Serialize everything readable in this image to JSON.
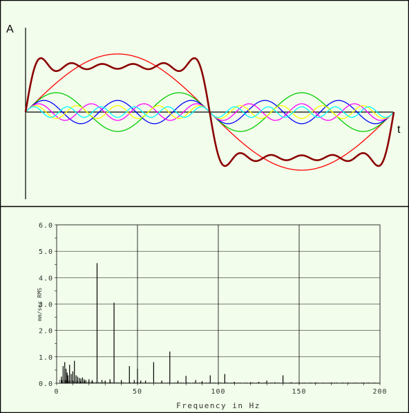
{
  "chart_data": [
    {
      "type": "line",
      "title": "",
      "ylabel": "A",
      "xlabel": "t",
      "x": "t from 0 to 2π",
      "series": [
        {
          "color": "#8b0000",
          "values": "square-wave partial sum of harmonics 1,3,5,7,9,11",
          "harmonics": [
            1,
            3,
            5,
            7,
            9,
            11
          ]
        },
        {
          "color": "#ff0000",
          "harmonic": 1,
          "amplitude": 1.0
        },
        {
          "color": "#00cc00",
          "harmonic": 3,
          "amplitude": 0.3333
        },
        {
          "color": "#0000ff",
          "harmonic": 5,
          "amplitude": 0.2
        },
        {
          "color": "#ff00ff",
          "harmonic": 7,
          "amplitude": 0.1429
        },
        {
          "color": "#ffff00",
          "harmonic": 9,
          "amplitude": 0.1111
        },
        {
          "color": "#00ffff",
          "harmonic": 11,
          "amplitude": 0.0909
        }
      ]
    },
    {
      "type": "bar",
      "title": "",
      "xlabel": "Frequency in Hz",
      "ylabel": "mm/sec RMS",
      "xlim": [
        0,
        200
      ],
      "ylim": [
        0,
        6.0
      ],
      "xticks": [
        "0",
        "50",
        "100",
        "150",
        "200"
      ],
      "yticks": [
        "0.0",
        "1.0",
        "2.0",
        "3.0",
        "4.0",
        "5.0",
        "6.0"
      ],
      "grid": true,
      "x": [
        3,
        4,
        5,
        5.8,
        6.5,
        7,
        8,
        9,
        10,
        11,
        12,
        13,
        14,
        15,
        16,
        17,
        18,
        20,
        22,
        25,
        28,
        30,
        33,
        35.5,
        40,
        45,
        48,
        50,
        52,
        55,
        60,
        65,
        70,
        75,
        80,
        86,
        90,
        95,
        100,
        104,
        110,
        120,
        125,
        130,
        135,
        140,
        145,
        150,
        160,
        170,
        180,
        190
      ],
      "values": [
        0.25,
        0.65,
        0.8,
        0.55,
        0.4,
        0.3,
        0.7,
        0.35,
        0.45,
        0.85,
        0.3,
        0.25,
        0.2,
        0.18,
        0.22,
        0.15,
        0.12,
        0.15,
        0.12,
        4.55,
        0.12,
        0.1,
        0.15,
        3.05,
        0.12,
        0.65,
        0.12,
        0.55,
        0.1,
        0.1,
        0.8,
        0.1,
        1.2,
        0.1,
        0.28,
        0.12,
        0.08,
        0.3,
        0.05,
        0.35,
        0.05,
        0.04,
        0.05,
        0.1,
        0.04,
        0.3,
        0.03,
        0.03,
        0.03,
        0.03,
        0.02,
        0.02
      ]
    }
  ],
  "top_chart": {
    "y_letter": "A",
    "x_letter": "t"
  },
  "bottom_chart": {
    "ylabel": "mm/sec RMS",
    "xlabel": "Frequency in Hz",
    "yticks": [
      "0.0",
      "1.0",
      "2.0",
      "3.0",
      "4.0",
      "5.0",
      "6.0"
    ],
    "xticks": [
      "0",
      "50",
      "100",
      "150",
      "200"
    ]
  },
  "colors": {
    "background": "#f2fdeb",
    "square": "#8b0000"
  }
}
